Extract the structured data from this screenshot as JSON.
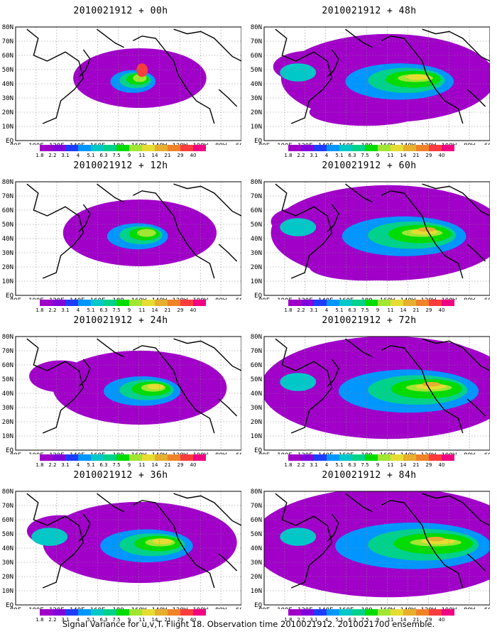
{
  "panels": [
    {
      "title": "2010021912 + 00h",
      "level": 0
    },
    {
      "title": "2010021912 + 12h",
      "level": 1
    },
    {
      "title": "2010021912 + 24h",
      "level": 2
    },
    {
      "title": "2010021912 + 36h",
      "level": 3
    },
    {
      "title": "2010021912 + 48h",
      "level": 4
    },
    {
      "title": "2010021912 + 60h",
      "level": 5
    },
    {
      "title": "2010021912 + 72h",
      "level": 6
    },
    {
      "title": "2010021912 + 84h",
      "level": 7
    }
  ],
  "lon_labels": [
    "80E",
    "100E",
    "120E",
    "140E",
    "160E",
    "180",
    "160W",
    "140W",
    "120W",
    "100W",
    "80W",
    "60W"
  ],
  "lat_labels": [
    "EQ",
    "10N",
    "20N",
    "30N",
    "40N",
    "50N",
    "60N",
    "70N",
    "80N"
  ],
  "colorbar": {
    "levels": [
      "1.8",
      "2.2",
      "3.1",
      "4",
      "5.1",
      "6.3",
      "7.5",
      "9",
      "11",
      "14",
      "21",
      "29",
      "40"
    ],
    "colors": [
      "#a000c8",
      "#8200dc",
      "#1e3cff",
      "#0096ff",
      "#00c8c8",
      "#00d28c",
      "#00dc00",
      "#a0e632",
      "#e6dc32",
      "#e6af2d",
      "#f08228",
      "#fa3c3c",
      "#f00082"
    ]
  },
  "caption": "Signal Variance for u,v,T. Flight 18. Observation time 2010021912. 2010021700 ensemble."
}
